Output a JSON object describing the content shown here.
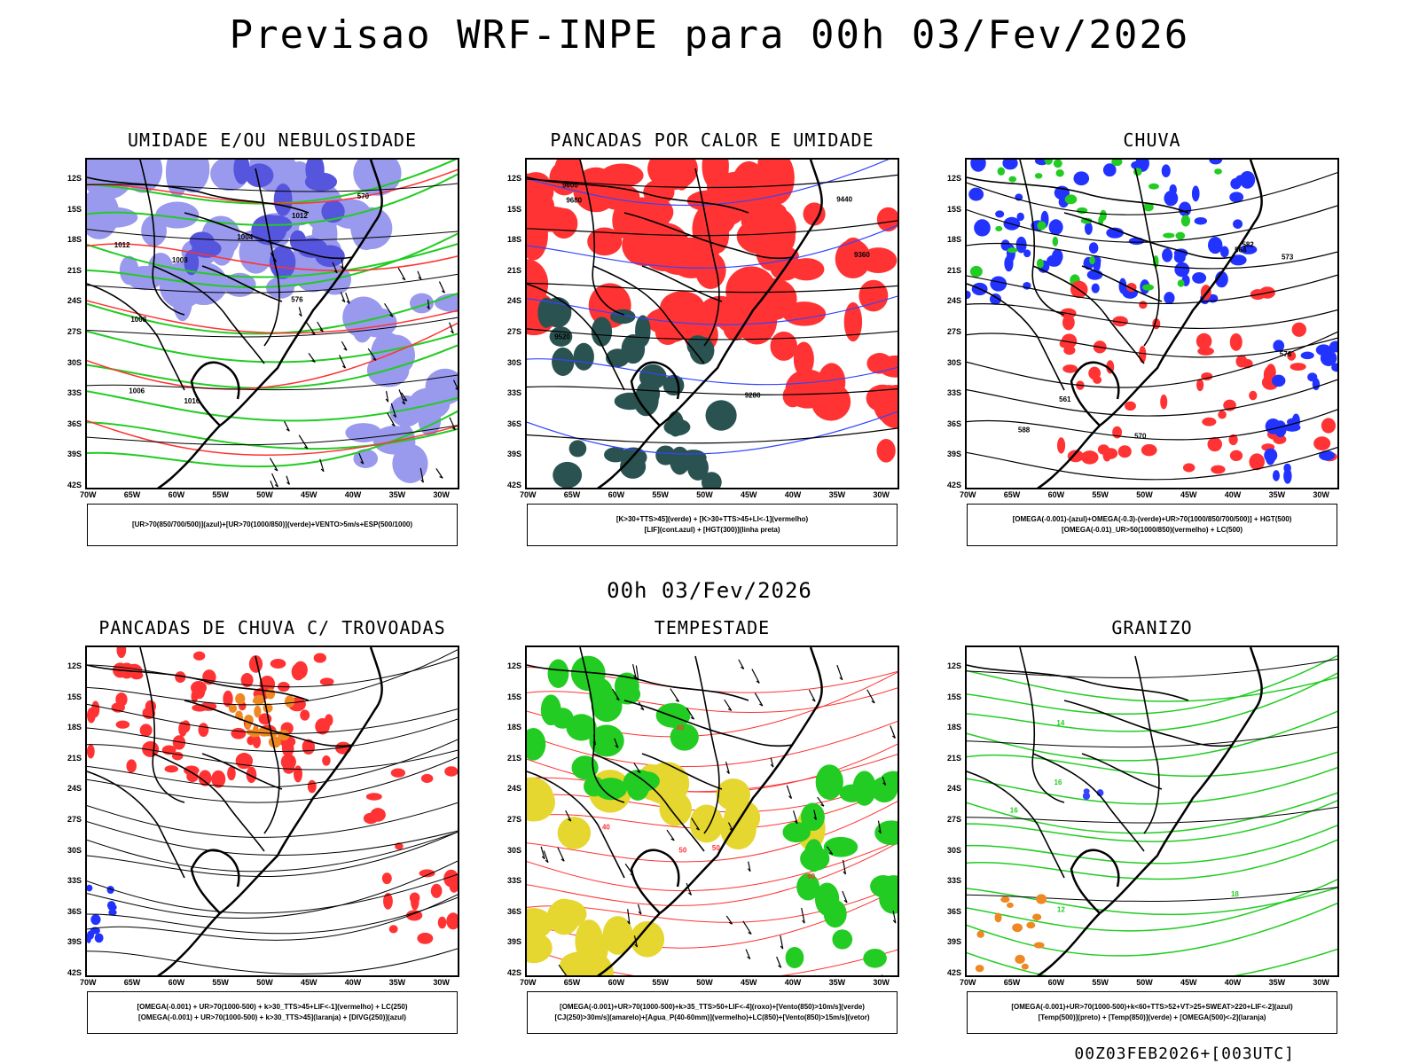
{
  "main_title": "Previsao WRF-INPE  para 00h 03/Fev/2026",
  "mid_title": "00h 03/Fev/2026",
  "footer": "00Z03FEB2026+[003UTC]",
  "axes": {
    "lat_labels": [
      "12S",
      "15S",
      "18S",
      "21S",
      "24S",
      "27S",
      "30S",
      "33S",
      "36S",
      "39S",
      "42S"
    ],
    "lon_labels": [
      "70W",
      "65W",
      "60W",
      "55W",
      "50W",
      "45W",
      "40W",
      "35W",
      "30W"
    ]
  },
  "panels": [
    {
      "id": "umidade",
      "title": "UMIDADE E/OU NEBULOSIDADE",
      "legend": [
        "[UR>70(850/700/500)](azul)+[UR>70(1000/850)](verde)+VENTO>5m/s+ESP(500/1000)"
      ],
      "contour_labels": [
        "1012",
        "1016",
        "1008",
        "1004",
        "1008",
        "1006",
        "570",
        "576",
        "1012"
      ]
    },
    {
      "id": "pancadas",
      "title": "PANCADAS POR CALOR E UMIDADE",
      "legend": [
        "[K>30+TTS>45](verde) + [K>30+TTS>45+LI<-1](vermelho)",
        "[LIF](cont.azul) + [HGT(300)](linha preta)"
      ],
      "contour_labels": [
        "9680",
        "9600",
        "9520",
        "9440",
        "9360",
        "9280"
      ]
    },
    {
      "id": "chuva",
      "title": "CHUVA",
      "legend": [
        "[OMEGA(-0.001)-(azul)+OMEGA(-0.3)-(verde)+UR>70(1000/850/700/500)] + HGT(500)",
        "[OMEGA(-0.01)_UR>50(1000/850)(vermelho) + LC(500)"
      ],
      "contour_labels": [
        "588",
        "582",
        "576",
        "570",
        "564",
        "561",
        "573"
      ]
    },
    {
      "id": "trovoadas",
      "title": "PANCADAS DE CHUVA C/ TROVOADAS",
      "legend": [
        "[OMEGA(-0.001) + UR>70(1000-500) + k>30_TTS>45+LIF<-1](vermelho) + LC(250)",
        "[OMEGA(-0.001) + UR>70(1000-500) + k>30_TTS>45](laranja) + [DIVG(250)](azul)"
      ],
      "contour_labels": []
    },
    {
      "id": "tempestade",
      "title": "TEMPESTADE",
      "legend": [
        "[OMEGA(-0.001)+UR>70(1000-500)+k>35_TTS>50+LIF<-4](roxo)+[Vento(850)>10m/s](verde)",
        "[CJ(250)>30m/s](amarelo)+[Agua_P(40-60mm)](vermelho)+LC(850)+[Vento(850)>15m/s](vetor)"
      ],
      "contour_labels": [
        "40",
        "50",
        "60",
        "50",
        "40"
      ]
    },
    {
      "id": "granizo",
      "title": "GRANIZO",
      "legend": [
        "[OMEGA(-0.001)+UR>70(1000-500)+k<60+TTS>52+VT>25+SWEAT>220+LIF<-2](azul)",
        "[Temp(500)](preto) + [Temp(850)](verde) + [OMEGA(500)<-2](laranja)"
      ],
      "contour_labels": [
        "16",
        "12",
        "18",
        "16",
        "14"
      ]
    }
  ],
  "colors": {
    "blue_fill": "#9999ee",
    "blue_strong": "#5555dd",
    "green": "#22cc22",
    "red": "#ff3333",
    "dark_teal": "#2a5250",
    "orange": "#ee8822",
    "yellow": "#e6d630",
    "pure_blue": "#2233ff"
  }
}
